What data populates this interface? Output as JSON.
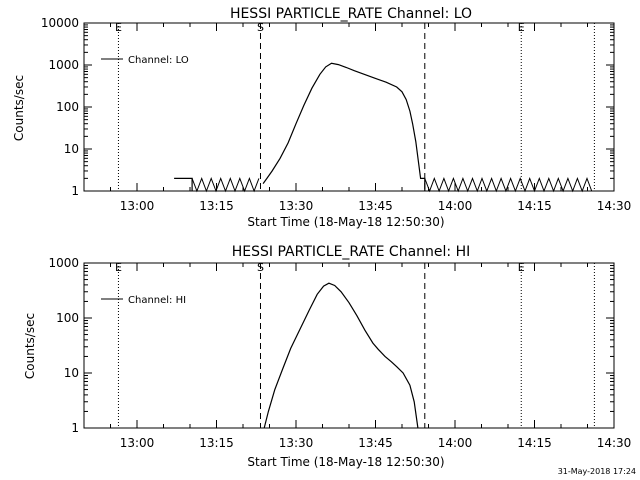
{
  "footer": {
    "timestamp": "31-May-2018 17:24"
  },
  "chart_data": [
    {
      "type": "line",
      "title": "HESSI PARTICLE_RATE Channel: LO",
      "xlabel": "Start Time (18-May-18 12:50:30)",
      "ylabel": "Counts/sec",
      "legend": {
        "label": "Channel: LO",
        "position": "top-left"
      },
      "x_unit": "minutes of day (UT)",
      "xlim": [
        770,
        870
      ],
      "yscale": "log",
      "ylim": [
        1,
        10000
      ],
      "x_ticks": [
        {
          "x": 780,
          "label": "13:00"
        },
        {
          "x": 795,
          "label": "13:15"
        },
        {
          "x": 810,
          "label": "13:30"
        },
        {
          "x": 825,
          "label": "13:45"
        },
        {
          "x": 840,
          "label": "14:00"
        },
        {
          "x": 855,
          "label": "14:15"
        },
        {
          "x": 870,
          "label": "14:30"
        }
      ],
      "y_ticks": [
        {
          "y": 1,
          "label": "1"
        },
        {
          "y": 10,
          "label": "10"
        },
        {
          "y": 100,
          "label": "100"
        },
        {
          "y": 1000,
          "label": "1000"
        },
        {
          "y": 10000,
          "label": "10000"
        }
      ],
      "markers": [
        {
          "x": 776.5,
          "label": "E",
          "style": "dotted"
        },
        {
          "x": 803.3,
          "label": "S",
          "style": "dashed"
        },
        {
          "x": 834.3,
          "label": "",
          "style": "dashed"
        },
        {
          "x": 852.5,
          "label": "E",
          "style": "dotted"
        },
        {
          "x": 866.3,
          "label": "",
          "style": "dotted"
        }
      ],
      "segments": [
        [
          [
            787,
            2
          ],
          [
            790.4,
            2
          ],
          [
            790.4,
            1
          ]
        ],
        [
          [
            803.8,
            1.5
          ],
          [
            804.5,
            2
          ],
          [
            805.5,
            3
          ],
          [
            807,
            6
          ],
          [
            808.5,
            14
          ],
          [
            810,
            40
          ],
          [
            811.5,
            110
          ],
          [
            813,
            280
          ],
          [
            814.5,
            600
          ],
          [
            815.6,
            900
          ],
          [
            816.7,
            1100
          ],
          [
            818,
            1020
          ],
          [
            819.5,
            870
          ],
          [
            821,
            730
          ],
          [
            823,
            590
          ],
          [
            825,
            480
          ],
          [
            827,
            390
          ],
          [
            829,
            300
          ],
          [
            830,
            230
          ],
          [
            830.8,
            150
          ],
          [
            831.5,
            80
          ],
          [
            832,
            40
          ],
          [
            832.6,
            15
          ],
          [
            833.1,
            5
          ],
          [
            833.5,
            2
          ],
          [
            834.3,
            2
          ],
          [
            834.3,
            1
          ]
        ]
      ],
      "noise": [
        [
          790.4,
          803.8
        ],
        [
          834.3,
          866.5
        ]
      ]
    },
    {
      "type": "line",
      "title": "HESSI PARTICLE_RATE Channel: HI",
      "xlabel": "Start Time (18-May-18 12:50:30)",
      "ylabel": "Counts/sec",
      "legend": {
        "label": "Channel: HI",
        "position": "top-left"
      },
      "x_unit": "minutes of day (UT)",
      "xlim": [
        770,
        870
      ],
      "yscale": "log",
      "ylim": [
        1,
        1000
      ],
      "x_ticks": [
        {
          "x": 780,
          "label": "13:00"
        },
        {
          "x": 795,
          "label": "13:15"
        },
        {
          "x": 810,
          "label": "13:30"
        },
        {
          "x": 825,
          "label": "13:45"
        },
        {
          "x": 840,
          "label": "14:00"
        },
        {
          "x": 855,
          "label": "14:15"
        },
        {
          "x": 870,
          "label": "14:30"
        }
      ],
      "y_ticks": [
        {
          "y": 1,
          "label": "1"
        },
        {
          "y": 10,
          "label": "10"
        },
        {
          "y": 100,
          "label": "100"
        },
        {
          "y": 1000,
          "label": "1000"
        }
      ],
      "markers": [
        {
          "x": 776.5,
          "label": "E",
          "style": "dotted"
        },
        {
          "x": 803.3,
          "label": "S",
          "style": "dashed"
        },
        {
          "x": 834.3,
          "label": "",
          "style": "dashed"
        },
        {
          "x": 852.5,
          "label": "E",
          "style": "dotted"
        },
        {
          "x": 866.3,
          "label": "",
          "style": "dotted"
        }
      ],
      "segments": [
        [
          [
            804,
            1
          ],
          [
            804.8,
            2
          ],
          [
            806,
            5
          ],
          [
            807.5,
            12
          ],
          [
            809,
            28
          ],
          [
            811,
            70
          ],
          [
            812.5,
            140
          ],
          [
            814,
            270
          ],
          [
            815.2,
            380
          ],
          [
            816.2,
            430
          ],
          [
            817.3,
            390
          ],
          [
            818.5,
            300
          ],
          [
            820,
            190
          ],
          [
            821.5,
            110
          ],
          [
            823,
            60
          ],
          [
            824.5,
            35
          ],
          [
            825.5,
            27
          ],
          [
            826.8,
            20
          ],
          [
            828,
            16
          ],
          [
            829,
            13
          ],
          [
            830.2,
            10
          ],
          [
            831.5,
            6
          ],
          [
            832.3,
            3
          ],
          [
            833,
            1
          ]
        ]
      ],
      "noise": []
    }
  ]
}
